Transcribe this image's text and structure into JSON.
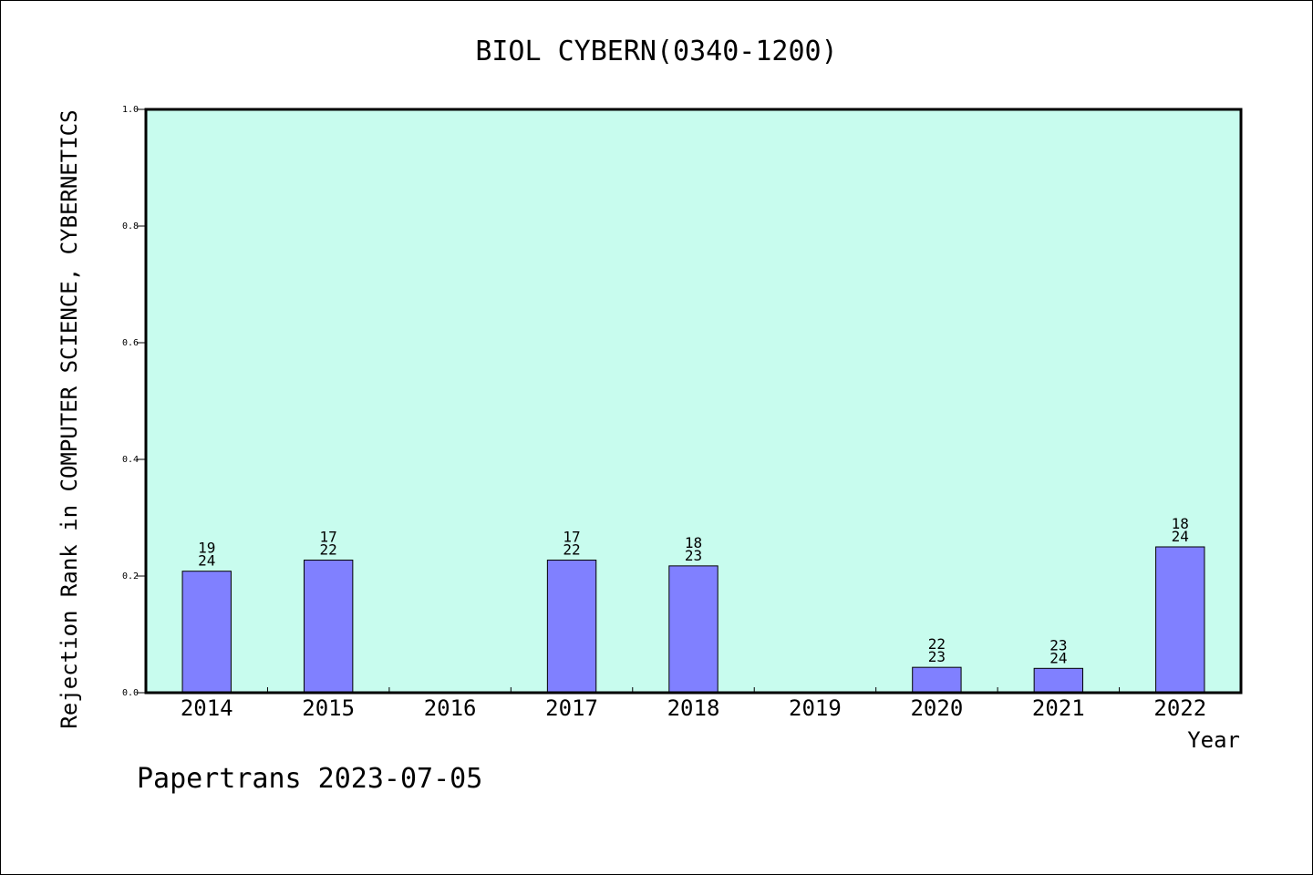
{
  "chart_data": {
    "type": "bar",
    "title": "BIOL CYBERN(0340-1200)",
    "xlabel": "Year",
    "ylabel": "Rejection Rank in COMPUTER SCIENCE, CYBERNETICS",
    "categories": [
      "2014",
      "2015",
      "2016",
      "2017",
      "2018",
      "2019",
      "2020",
      "2021",
      "2022"
    ],
    "values": [
      0.2083,
      0.2273,
      null,
      0.2273,
      0.2174,
      null,
      0.0435,
      0.0417,
      0.25
    ],
    "bar_labels": [
      [
        "19",
        "24"
      ],
      [
        "17",
        "22"
      ],
      null,
      [
        "17",
        "22"
      ],
      [
        "18",
        "23"
      ],
      null,
      [
        "22",
        "23"
      ],
      [
        "23",
        "24"
      ],
      [
        "18",
        "24"
      ]
    ],
    "ylim": [
      0,
      1.0
    ],
    "yticks": [
      "0.0",
      "0.2",
      "0.4",
      "0.6",
      "0.8",
      "1.0"
    ],
    "grid": false,
    "colors": {
      "plot_background": "#c8fcee",
      "bar_fill": "#8080ff",
      "bar_stroke": "#000000"
    }
  },
  "footer": "Papertrans 2023-07-05"
}
